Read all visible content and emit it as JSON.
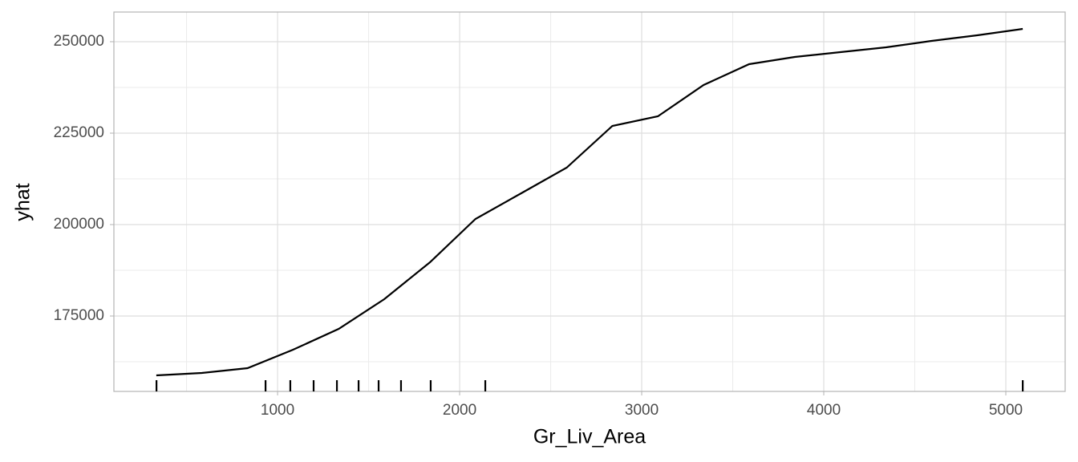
{
  "chart_data": {
    "type": "line",
    "x_label": "Gr_Liv_Area",
    "y_label": "yhat",
    "x": [
      334,
      584,
      835,
      1085,
      1336,
      1586,
      1837,
      2087,
      2338,
      2588,
      2839,
      3089,
      3340,
      3590,
      3841,
      4091,
      4342,
      4592,
      4843,
      5093
    ],
    "series": [
      {
        "name": "yhat",
        "color": "#000000",
        "values": [
          158772,
          159430,
          160746,
          165789,
          171491,
          179605,
          189693,
          201535,
          208553,
          215570,
          226974,
          229605,
          238158,
          243860,
          245833,
          247149,
          248465,
          250219,
          251754,
          253509
        ]
      }
    ],
    "rug": [
      335,
      934,
      1070,
      1198,
      1326,
      1445,
      1555,
      1678,
      1841,
      2141,
      5093
    ],
    "xlim": [
      101,
      5326
    ],
    "ylim": [
      154386,
      258114
    ],
    "xticks": [
      1000,
      2000,
      3000,
      4000,
      5000
    ],
    "yticks": [
      175000,
      200000,
      225000,
      250000
    ],
    "grid": true
  }
}
